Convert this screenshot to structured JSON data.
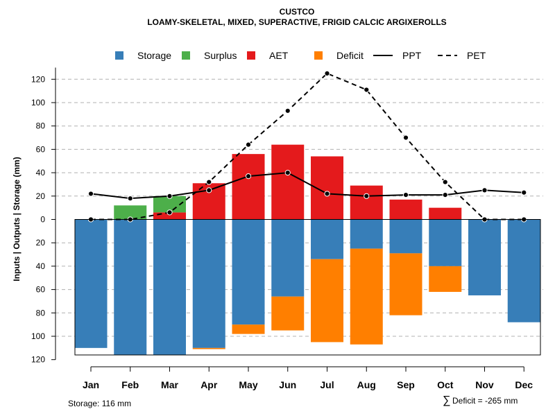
{
  "chart_data": {
    "type": "bar",
    "title": "CUSTCO",
    "subtitle": "LOAMY-SKELETAL, MIXED, SUPERACTIVE, FRIGID CALCIC ARGIXEROLLS",
    "ylabel": "Inputs | Outputs | Storage    (mm)",
    "categories": [
      "Jan",
      "Feb",
      "Mar",
      "Apr",
      "May",
      "Jun",
      "Jul",
      "Aug",
      "Sep",
      "Oct",
      "Nov",
      "Dec"
    ],
    "y_ticks_above": [
      "20",
      "40",
      "60",
      "80",
      "100",
      "120"
    ],
    "y_ticks_below": [
      "0",
      "20",
      "40",
      "60",
      "80",
      "100",
      "120"
    ],
    "ylim": [
      -120,
      130
    ],
    "series": [
      {
        "name": "Storage",
        "color": "#377EB8",
        "values": [
          110,
          116,
          116,
          110,
          90,
          66,
          34,
          25,
          29,
          40,
          65,
          88
        ]
      },
      {
        "name": "Surplus",
        "color": "#4DAF4A",
        "values": [
          0,
          12,
          14,
          0,
          0,
          0,
          0,
          0,
          0,
          0,
          0,
          0
        ]
      },
      {
        "name": "AET",
        "color": "#E41A1C",
        "values": [
          0,
          0,
          6,
          31,
          56,
          64,
          54,
          29,
          17,
          10,
          0,
          0
        ]
      },
      {
        "name": "Deficit",
        "color": "#FF7F00",
        "values": [
          0,
          0,
          0,
          1,
          8,
          29,
          71,
          82,
          53,
          22,
          0,
          0
        ]
      },
      {
        "name": "PPT",
        "color": "#000000",
        "style": "solid",
        "values": [
          22,
          18,
          20,
          25,
          37,
          40,
          22,
          20,
          21,
          21,
          25,
          23
        ]
      },
      {
        "name": "PET",
        "color": "#000000",
        "style": "dashed",
        "values": [
          0,
          0,
          6,
          32,
          64,
          93,
          125,
          111,
          70,
          32,
          0,
          0
        ]
      }
    ],
    "storage_capacity": 116,
    "footer_left": "Storage: 116 mm",
    "footer_right_symbol": "∑",
    "footer_right": "Deficit = -265 mm"
  }
}
